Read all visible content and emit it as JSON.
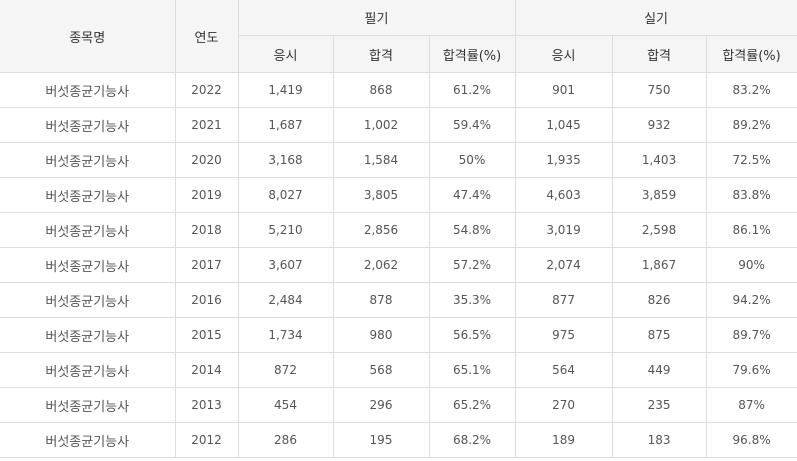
{
  "table": {
    "headers": {
      "item": "종목명",
      "year": "연도",
      "written_group": "필기",
      "practical_group": "실기",
      "written_sub": [
        "응시",
        "합격",
        "합격률(%)"
      ],
      "practical_sub": [
        "응시",
        "합격",
        "합격률(%)"
      ]
    },
    "rows": [
      {
        "name": "버섯종균기능사",
        "year": "2022",
        "w_apply": "1,419",
        "w_pass": "868",
        "w_rate": "61.2%",
        "p_apply": "901",
        "p_pass": "750",
        "p_rate": "83.2%"
      },
      {
        "name": "버섯종균기능사",
        "year": "2021",
        "w_apply": "1,687",
        "w_pass": "1,002",
        "w_rate": "59.4%",
        "p_apply": "1,045",
        "p_pass": "932",
        "p_rate": "89.2%"
      },
      {
        "name": "버섯종균기능사",
        "year": "2020",
        "w_apply": "3,168",
        "w_pass": "1,584",
        "w_rate": "50%",
        "p_apply": "1,935",
        "p_pass": "1,403",
        "p_rate": "72.5%"
      },
      {
        "name": "버섯종균기능사",
        "year": "2019",
        "w_apply": "8,027",
        "w_pass": "3,805",
        "w_rate": "47.4%",
        "p_apply": "4,603",
        "p_pass": "3,859",
        "p_rate": "83.8%"
      },
      {
        "name": "버섯종균기능사",
        "year": "2018",
        "w_apply": "5,210",
        "w_pass": "2,856",
        "w_rate": "54.8%",
        "p_apply": "3,019",
        "p_pass": "2,598",
        "p_rate": "86.1%"
      },
      {
        "name": "버섯종균기능사",
        "year": "2017",
        "w_apply": "3,607",
        "w_pass": "2,062",
        "w_rate": "57.2%",
        "p_apply": "2,074",
        "p_pass": "1,867",
        "p_rate": "90%"
      },
      {
        "name": "버섯종균기능사",
        "year": "2016",
        "w_apply": "2,484",
        "w_pass": "878",
        "w_rate": "35.3%",
        "p_apply": "877",
        "p_pass": "826",
        "p_rate": "94.2%"
      },
      {
        "name": "버섯종균기능사",
        "year": "2015",
        "w_apply": "1,734",
        "w_pass": "980",
        "w_rate": "56.5%",
        "p_apply": "975",
        "p_pass": "875",
        "p_rate": "89.7%"
      },
      {
        "name": "버섯종균기능사",
        "year": "2014",
        "w_apply": "872",
        "w_pass": "568",
        "w_rate": "65.1%",
        "p_apply": "564",
        "p_pass": "449",
        "p_rate": "79.6%"
      },
      {
        "name": "버섯종균기능사",
        "year": "2013",
        "w_apply": "454",
        "w_pass": "296",
        "w_rate": "65.2%",
        "p_apply": "270",
        "p_pass": "235",
        "p_rate": "87%"
      },
      {
        "name": "버섯종균기능사",
        "year": "2012",
        "w_apply": "286",
        "w_pass": "195",
        "w_rate": "68.2%",
        "p_apply": "189",
        "p_pass": "183",
        "p_rate": "96.8%"
      }
    ]
  }
}
